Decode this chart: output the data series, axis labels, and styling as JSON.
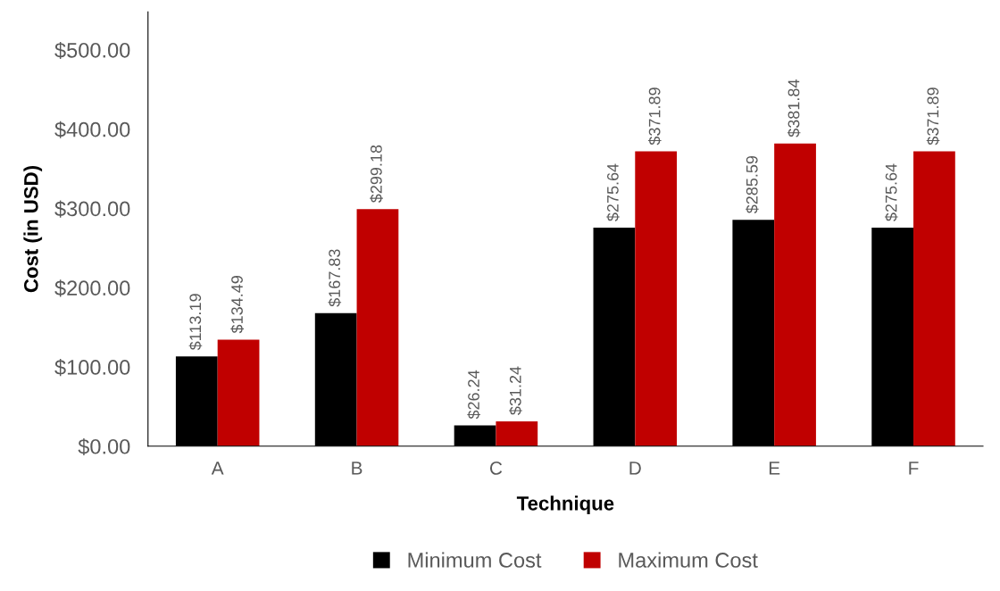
{
  "chart_data": {
    "type": "bar",
    "xlabel": "Technique",
    "ylabel": "Cost (in USD)",
    "categories": [
      "A",
      "B",
      "C",
      "D",
      "E",
      "F"
    ],
    "series": [
      {
        "name": "Minimum Cost",
        "color": "#000000",
        "values": [
          113.19,
          167.83,
          26.24,
          275.64,
          285.59,
          275.64
        ],
        "value_labels": [
          "$113.19",
          "$167.83",
          "$26.24",
          "$275.64",
          "$285.59",
          "$275.64"
        ]
      },
      {
        "name": "Maximum Cost",
        "color": "#c00000",
        "values": [
          134.49,
          299.18,
          31.24,
          371.89,
          381.84,
          371.89
        ],
        "value_labels": [
          "$134.49",
          "$299.18",
          "$31.24",
          "$371.89",
          "$381.84",
          "$371.89"
        ]
      }
    ],
    "ylim": [
      0,
      548
    ],
    "yticks": [
      {
        "value": 0,
        "label": "$0.00"
      },
      {
        "value": 100,
        "label": "$100.00"
      },
      {
        "value": 200,
        "label": "$200.00"
      },
      {
        "value": 300,
        "label": "$300.00"
      },
      {
        "value": 400,
        "label": "$400.00"
      },
      {
        "value": 500,
        "label": "$500.00"
      }
    ],
    "grid": false,
    "legend": "bottom"
  }
}
